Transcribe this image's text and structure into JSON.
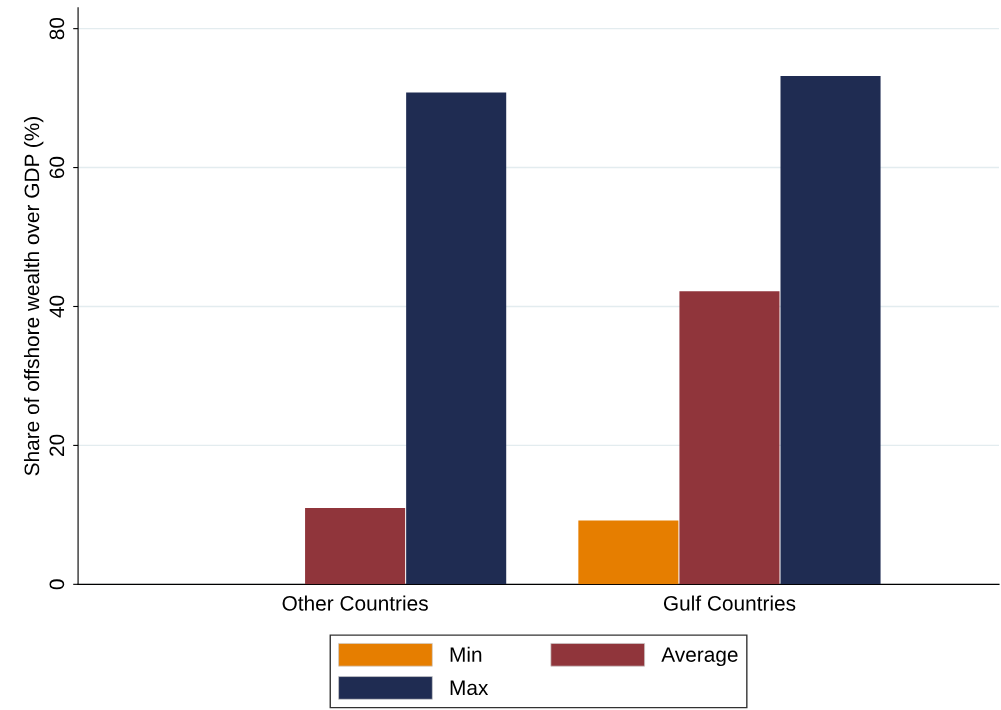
{
  "chart_data": {
    "type": "bar",
    "ylabel": "Share of offshore wealth over GDP (%)",
    "categories": [
      "Other Countries",
      "Gulf Countries"
    ],
    "series": [
      {
        "name": "Min",
        "color": "#e67e00",
        "values": [
          0,
          9.2
        ]
      },
      {
        "name": "Average",
        "color": "#90353b",
        "values": [
          11.0,
          42.2
        ]
      },
      {
        "name": "Max",
        "color": "#1f2c52",
        "values": [
          70.8,
          73.2
        ]
      }
    ],
    "ylim": [
      0,
      83
    ],
    "yticks": [
      0,
      20,
      40,
      60,
      80
    ],
    "grid": "y",
    "legend": "bottom"
  }
}
